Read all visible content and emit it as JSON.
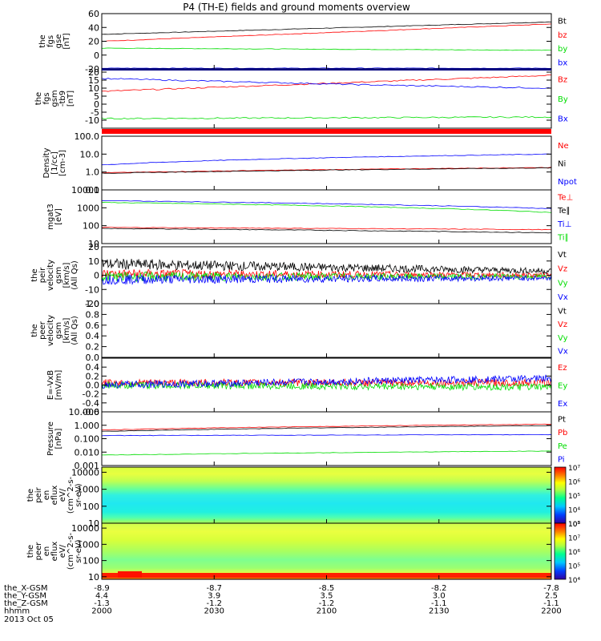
{
  "title": "P4 (TH-E) fields and ground moments overview",
  "colors": {
    "black": "#000000",
    "red": "#ff0000",
    "green": "#00dd00",
    "blue": "#0000ff"
  },
  "time_axis": {
    "ticks": [
      "2000",
      "2030",
      "2100",
      "2130",
      "2200"
    ],
    "rows": [
      {
        "label": "the_X-GSM",
        "values": [
          "-8.9",
          "-8.7",
          "-8.5",
          "-8.2",
          "-7.8"
        ]
      },
      {
        "label": "the_Y-GSM",
        "values": [
          "4.4",
          "3.9",
          "3.5",
          "3.0",
          "2.5"
        ]
      },
      {
        "label": "the_Z-GSM",
        "values": [
          "-1.3",
          "-1.2",
          "-1.2",
          "-1.1",
          "-1.1"
        ]
      },
      {
        "label": "hhmm",
        "values": [
          "2000",
          "2030",
          "2100",
          "2130",
          "2200"
        ]
      }
    ],
    "date": "2013 Oct 05"
  },
  "chart_data": [
    {
      "type": "line",
      "ylabel": [
        "the",
        "fgs",
        "gse",
        "[nT]"
      ],
      "ylim": [
        -20,
        60
      ],
      "yticks": [
        "60",
        "40",
        "20",
        "0",
        "-20"
      ],
      "series": [
        {
          "name": "Bt",
          "color": "#000000",
          "x": [
            0,
            1
          ],
          "values": [
            30,
            48
          ]
        },
        {
          "name": "bz",
          "color": "#ff0000",
          "x": [
            0,
            1
          ],
          "values": [
            20,
            45
          ]
        },
        {
          "name": "by",
          "color": "#00dd00",
          "x": [
            0,
            1
          ],
          "values": [
            10,
            7
          ]
        },
        {
          "name": "bx",
          "color": "#0000ff",
          "x": [
            0,
            1
          ],
          "values": [
            -19,
            -19
          ]
        }
      ]
    },
    {
      "type": "line",
      "ylabel": [
        "the",
        "fgs",
        "gsm",
        "-tb9",
        "[nT]"
      ],
      "ylim": [
        -15,
        22
      ],
      "yticks": [
        "20",
        "15",
        "10",
        "5",
        "0",
        "-5",
        "-10"
      ],
      "series": [
        {
          "name": "Bz",
          "color": "#ff0000",
          "x": [
            0,
            0.3,
            0.6,
            1
          ],
          "values": [
            8,
            11,
            14,
            18
          ]
        },
        {
          "name": "By",
          "color": "#00dd00",
          "x": [
            0,
            1
          ],
          "values": [
            -9,
            -8
          ]
        },
        {
          "name": "Bx",
          "color": "#0000ff",
          "x": [
            0,
            0.3,
            0.6,
            1
          ],
          "values": [
            16,
            14,
            12,
            10
          ]
        }
      ]
    },
    {
      "type": "line",
      "ylabel": [
        "Density",
        "[1/cc]",
        "[cm-3]"
      ],
      "ylim": [
        0.1,
        100
      ],
      "log": true,
      "yticks": [
        "100.0",
        "10.0",
        "1.0",
        "0.1"
      ],
      "series": [
        {
          "name": "Ne",
          "color": "#ff0000",
          "x": [
            0,
            1
          ],
          "values": [
            0.9,
            1.8
          ]
        },
        {
          "name": "Ni",
          "color": "#000000",
          "x": [
            0,
            1
          ],
          "values": [
            0.85,
            1.7
          ]
        },
        {
          "name": "Npot",
          "color": "#0000ff",
          "x": [
            0,
            1
          ],
          "values": [
            2.5,
            10
          ]
        }
      ]
    },
    {
      "type": "line",
      "ylabel": [
        "mgat3",
        "[eV]"
      ],
      "ylim": [
        10,
        10000
      ],
      "log": true,
      "yticks": [
        "10000",
        "1000",
        "100",
        "10"
      ],
      "series": [
        {
          "name": "Te⊥",
          "color": "#ff0000",
          "x": [
            0,
            1
          ],
          "values": [
            80,
            60
          ]
        },
        {
          "name": "Te∥",
          "color": "#000000",
          "x": [
            0,
            1
          ],
          "values": [
            70,
            40
          ]
        },
        {
          "name": "Ti⊥",
          "color": "#0000ff",
          "x": [
            0,
            1
          ],
          "values": [
            2500,
            900
          ]
        },
        {
          "name": "Ti∥",
          "color": "#00dd00",
          "x": [
            0,
            1
          ],
          "values": [
            2000,
            550
          ]
        }
      ]
    },
    {
      "type": "line",
      "ylabel": [
        "the",
        "peir",
        "velocity",
        "gsm",
        "[km/s]",
        "(All Qs)"
      ],
      "ylim": [
        -20,
        20
      ],
      "yticks": [
        "20",
        "10",
        "0",
        "-10",
        "-20"
      ],
      "series": [
        {
          "name": "Vt",
          "color": "#000000",
          "x": [
            0,
            1
          ],
          "values": [
            8,
            3
          ]
        },
        {
          "name": "Vz",
          "color": "#ff0000",
          "x": [
            0,
            1
          ],
          "values": [
            1,
            0
          ]
        },
        {
          "name": "Vy",
          "color": "#00dd00",
          "x": [
            0,
            1
          ],
          "values": [
            -1,
            -1
          ]
        },
        {
          "name": "Vx",
          "color": "#0000ff",
          "x": [
            0,
            1
          ],
          "values": [
            -3,
            -2
          ]
        }
      ]
    },
    {
      "type": "line",
      "ylabel": [
        "the",
        "peer",
        "velocity",
        "gsm",
        "[km/s]",
        "(All Qs)"
      ],
      "ylim": [
        0,
        1
      ],
      "yticks": [
        "1.0",
        "0.8",
        "0.6",
        "0.4",
        "0.2",
        "0.0"
      ],
      "series": [
        {
          "name": "Vt",
          "color": "#000000",
          "x": [],
          "values": []
        },
        {
          "name": "Vz",
          "color": "#ff0000",
          "x": [],
          "values": []
        },
        {
          "name": "Vy",
          "color": "#00dd00",
          "x": [],
          "values": []
        },
        {
          "name": "Vx",
          "color": "#0000ff",
          "x": [],
          "values": []
        }
      ]
    },
    {
      "type": "line",
      "ylabel": [
        "E=-VxB",
        "[mV/m]"
      ],
      "ylim": [
        -0.6,
        0.6
      ],
      "yticks": [
        "0.4",
        "0.2",
        "0.0",
        "-0.2",
        "-0.4",
        "-0.6"
      ],
      "series": [
        {
          "name": "Ez",
          "color": "#ff0000",
          "x": [
            0,
            1
          ],
          "values": [
            0.05,
            0.05
          ]
        },
        {
          "name": "Ey",
          "color": "#00dd00",
          "x": [
            0,
            1
          ],
          "values": [
            0.0,
            -0.05
          ]
        },
        {
          "name": "Ex",
          "color": "#0000ff",
          "x": [
            0,
            1
          ],
          "values": [
            0.0,
            0.15
          ]
        }
      ]
    },
    {
      "type": "line",
      "ylabel": [
        "Pressure",
        "[nPa]"
      ],
      "ylim": [
        0.001,
        10
      ],
      "log": true,
      "yticks": [
        "10.000",
        "1.000",
        "0.100",
        "0.010",
        "0.001"
      ],
      "series": [
        {
          "name": "Pt",
          "color": "#000000",
          "x": [
            0,
            1
          ],
          "values": [
            0.35,
            0.95
          ]
        },
        {
          "name": "Pb",
          "color": "#ff0000",
          "x": [
            0,
            1
          ],
          "values": [
            0.45,
            1.2
          ]
        },
        {
          "name": "Pe",
          "color": "#00dd00",
          "x": [
            0,
            1
          ],
          "values": [
            0.006,
            0.012
          ]
        },
        {
          "name": "Pi",
          "color": "#0000ff",
          "x": [
            0,
            1
          ],
          "values": [
            0.17,
            0.2
          ]
        }
      ]
    },
    {
      "type": "heatmap",
      "ylabel": [
        "the",
        "peir",
        "en",
        "eflux",
        "eV/",
        "(cm^2-s-",
        "sr-eV)"
      ],
      "ylim": [
        10,
        20000
      ],
      "log": true,
      "yticks": [
        "10000",
        "1000",
        "100",
        "10"
      ],
      "colorbar": {
        "ticks": [
          "10^7",
          "10^6",
          "10^5",
          "10^4",
          "10^3"
        ],
        "range": [
          1000,
          10000000
        ]
      }
    },
    {
      "type": "heatmap",
      "ylabel": [
        "the",
        "peer",
        "en",
        "eflux",
        "eV/",
        "(cm^2-s-",
        "sr-eV)"
      ],
      "ylim": [
        7,
        20000
      ],
      "log": true,
      "yticks": [
        "10000",
        "1000",
        "100",
        "10"
      ],
      "colorbar": {
        "ticks": [
          "10^8",
          "10^7",
          "10^6",
          "10^5",
          "10^4"
        ],
        "range": [
          10000,
          100000000
        ]
      }
    }
  ]
}
